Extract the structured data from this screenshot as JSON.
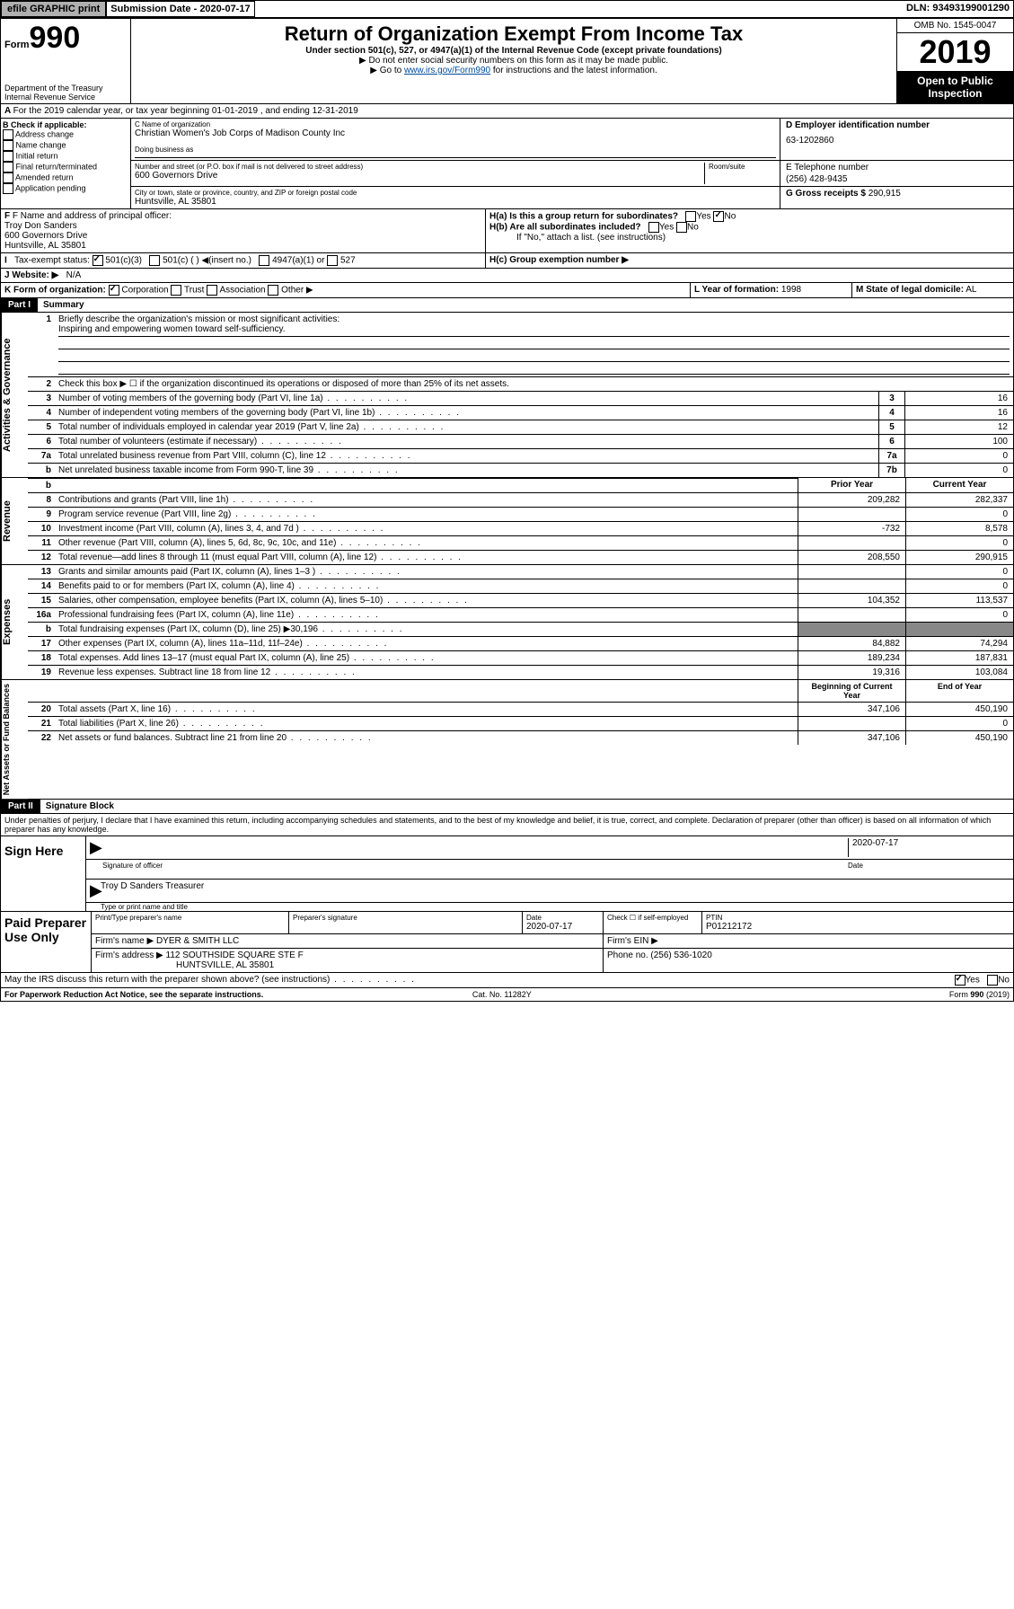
{
  "topbar": {
    "efile": "efile GRAPHIC print",
    "sub_lbl": "Submission Date - 2020-07-17",
    "dln": "DLN: 93493199001290"
  },
  "header": {
    "form_word": "Form",
    "form_num": "990",
    "dept": "Department of the Treasury\nInternal Revenue Service",
    "title": "Return of Organization Exempt From Income Tax",
    "subtitle": "Under section 501(c), 527, or 4947(a)(1) of the Internal Revenue Code (except private foundations)",
    "note1": "▶ Do not enter social security numbers on this form as it may be made public.",
    "note2_pre": "▶ Go to ",
    "note2_link": "www.irs.gov/Form990",
    "note2_post": " for instructions and the latest information.",
    "omb": "OMB No. 1545-0047",
    "year": "2019",
    "open": "Open to Public Inspection"
  },
  "periodA": "For the 2019 calendar year, or tax year beginning 01-01-2019   , and ending 12-31-2019",
  "boxB": {
    "hdr": "B Check if applicable:",
    "items": [
      "Address change",
      "Name change",
      "Initial return",
      "Final return/terminated",
      "Amended return",
      "Application pending"
    ]
  },
  "boxC": {
    "name_lbl": "C Name of organization",
    "name": "Christian Women's Job Corps of Madison County Inc",
    "dba_lbl": "Doing business as",
    "addr_lbl": "Number and street (or P.O. box if mail is not delivered to street address)",
    "room_lbl": "Room/suite",
    "addr": "600 Governors Drive",
    "city_lbl": "City or town, state or province, country, and ZIP or foreign postal code",
    "city": "Huntsville, AL  35801"
  },
  "boxD": {
    "lbl": "D Employer identification number",
    "val": "63-1202860"
  },
  "boxE": {
    "lbl": "E Telephone number",
    "val": "(256) 428-9435"
  },
  "boxG": {
    "lbl": "G Gross receipts $",
    "val": "290,915"
  },
  "boxF": {
    "lbl": "F Name and address of principal officer:",
    "name": "Troy Don Sanders",
    "addr1": "600 Governors Drive",
    "addr2": "Huntsville, AL  35801"
  },
  "boxH": {
    "a": "H(a)  Is this a group return for subordinates?",
    "b": "H(b)  Are all subordinates included?",
    "b_note": "If \"No,\" attach a list. (see instructions)",
    "c": "H(c)  Group exemption number ▶",
    "yes": "Yes",
    "no": "No"
  },
  "taxExempt": {
    "lbl": "Tax-exempt status:",
    "c3": "501(c)(3)",
    "c": "501(c) (  ) ◀(insert no.)",
    "a1": "4947(a)(1) or",
    "s527": "527"
  },
  "boxI": {
    "lbl": "J   Website: ▶",
    "val": "N/A"
  },
  "boxJ": "Website: ▶",
  "boxK": {
    "lbl": "K Form of organization:",
    "corp": "Corporation",
    "trust": "Trust",
    "assoc": "Association",
    "other": "Other ▶"
  },
  "boxL": {
    "lbl": "L Year of formation:",
    "val": "1998"
  },
  "boxM": {
    "lbl": "M State of legal domicile:",
    "val": "AL"
  },
  "part1": {
    "hdr": "Part I",
    "title": "Summary",
    "l1": "Briefly describe the organization's mission or most significant activities:",
    "mission": "Inspiring and empowering women toward self-sufficiency.",
    "l2": "Check this box ▶ ☐  if the organization discontinued its operations or disposed of more than 25% of its net assets.",
    "prior": "Prior Year",
    "current": "Current Year",
    "begin": "Beginning of Current Year",
    "end": "End of Year",
    "lines_simple": [
      {
        "n": "3",
        "d": "Number of voting members of the governing body (Part VI, line 1a)",
        "r": "3",
        "v": "16"
      },
      {
        "n": "4",
        "d": "Number of independent voting members of the governing body (Part VI, line 1b)",
        "r": "4",
        "v": "16"
      },
      {
        "n": "5",
        "d": "Total number of individuals employed in calendar year 2019 (Part V, line 2a)",
        "r": "5",
        "v": "12"
      },
      {
        "n": "6",
        "d": "Total number of volunteers (estimate if necessary)",
        "r": "6",
        "v": "100"
      },
      {
        "n": "7a",
        "d": "Total unrelated business revenue from Part VIII, column (C), line 12",
        "r": "7a",
        "v": "0"
      },
      {
        "n": "b",
        "d": "Net unrelated business taxable income from Form 990-T, line 39",
        "r": "7b",
        "v": "0"
      }
    ],
    "revenue": [
      {
        "n": "8",
        "d": "Contributions and grants (Part VIII, line 1h)",
        "p": "209,282",
        "c": "282,337"
      },
      {
        "n": "9",
        "d": "Program service revenue (Part VIII, line 2g)",
        "p": "",
        "c": "0"
      },
      {
        "n": "10",
        "d": "Investment income (Part VIII, column (A), lines 3, 4, and 7d )",
        "p": "-732",
        "c": "8,578"
      },
      {
        "n": "11",
        "d": "Other revenue (Part VIII, column (A), lines 5, 6d, 8c, 9c, 10c, and 11e)",
        "p": "",
        "c": "0"
      },
      {
        "n": "12",
        "d": "Total revenue—add lines 8 through 11 (must equal Part VIII, column (A), line 12)",
        "p": "208,550",
        "c": "290,915"
      }
    ],
    "expenses": [
      {
        "n": "13",
        "d": "Grants and similar amounts paid (Part IX, column (A), lines 1–3 )",
        "p": "",
        "c": "0"
      },
      {
        "n": "14",
        "d": "Benefits paid to or for members (Part IX, column (A), line 4)",
        "p": "",
        "c": "0"
      },
      {
        "n": "15",
        "d": "Salaries, other compensation, employee benefits (Part IX, column (A), lines 5–10)",
        "p": "104,352",
        "c": "113,537"
      },
      {
        "n": "16a",
        "d": "Professional fundraising fees (Part IX, column (A), line 11e)",
        "p": "",
        "c": "0"
      },
      {
        "n": "b",
        "d": "Total fundraising expenses (Part IX, column (D), line 25) ▶30,196",
        "p": null,
        "c": null
      },
      {
        "n": "17",
        "d": "Other expenses (Part IX, column (A), lines 11a–11d, 11f–24e)",
        "p": "84,882",
        "c": "74,294"
      },
      {
        "n": "18",
        "d": "Total expenses. Add lines 13–17 (must equal Part IX, column (A), line 25)",
        "p": "189,234",
        "c": "187,831"
      },
      {
        "n": "19",
        "d": "Revenue less expenses. Subtract line 18 from line 12",
        "p": "19,316",
        "c": "103,084"
      }
    ],
    "netassets": [
      {
        "n": "20",
        "d": "Total assets (Part X, line 16)",
        "p": "347,106",
        "c": "450,190"
      },
      {
        "n": "21",
        "d": "Total liabilities (Part X, line 26)",
        "p": "",
        "c": "0"
      },
      {
        "n": "22",
        "d": "Net assets or fund balances. Subtract line 21 from line 20",
        "p": "347,106",
        "c": "450,190"
      }
    ]
  },
  "sections": {
    "gov": "Activities & Governance",
    "rev": "Revenue",
    "exp": "Expenses",
    "net": "Net Assets or Fund Balances"
  },
  "part2": {
    "hdr": "Part II",
    "title": "Signature Block",
    "decl": "Under penalties of perjury, I declare that I have examined this return, including accompanying schedules and statements, and to the best of my knowledge and belief, it is true, correct, and complete. Declaration of preparer (other than officer) is based on all information of which preparer has any knowledge.",
    "sign": "Sign Here",
    "sig_officer": "Signature of officer",
    "date": "Date",
    "sig_date": "2020-07-17",
    "name_title": "Troy D Sanders Treasurer",
    "type_name": "Type or print name and title"
  },
  "prep": {
    "hdr": "Paid Preparer Use Only",
    "print_lbl": "Print/Type preparer's name",
    "sig_lbl": "Preparer's signature",
    "date_lbl": "Date",
    "date": "2020-07-17",
    "check_lbl": "Check ☐ if self-employed",
    "ptin_lbl": "PTIN",
    "ptin": "P01212172",
    "firm_name_lbl": "Firm's name   ▶",
    "firm_name": "DYER & SMITH LLC",
    "firm_ein_lbl": "Firm's EIN ▶",
    "firm_addr_lbl": "Firm's address ▶",
    "firm_addr": "112 SOUTHSIDE SQUARE STE F",
    "firm_city": "HUNTSVILLE, AL  35801",
    "phone_lbl": "Phone no.",
    "phone": "(256) 536-1020"
  },
  "discuss": {
    "q": "May the IRS discuss this return with the preparer shown above? (see instructions)",
    "yes": "Yes",
    "no": "No"
  },
  "footer": {
    "left": "For Paperwork Reduction Act Notice, see the separate instructions.",
    "mid": "Cat. No. 11282Y",
    "right": "Form 990 (2019)"
  }
}
